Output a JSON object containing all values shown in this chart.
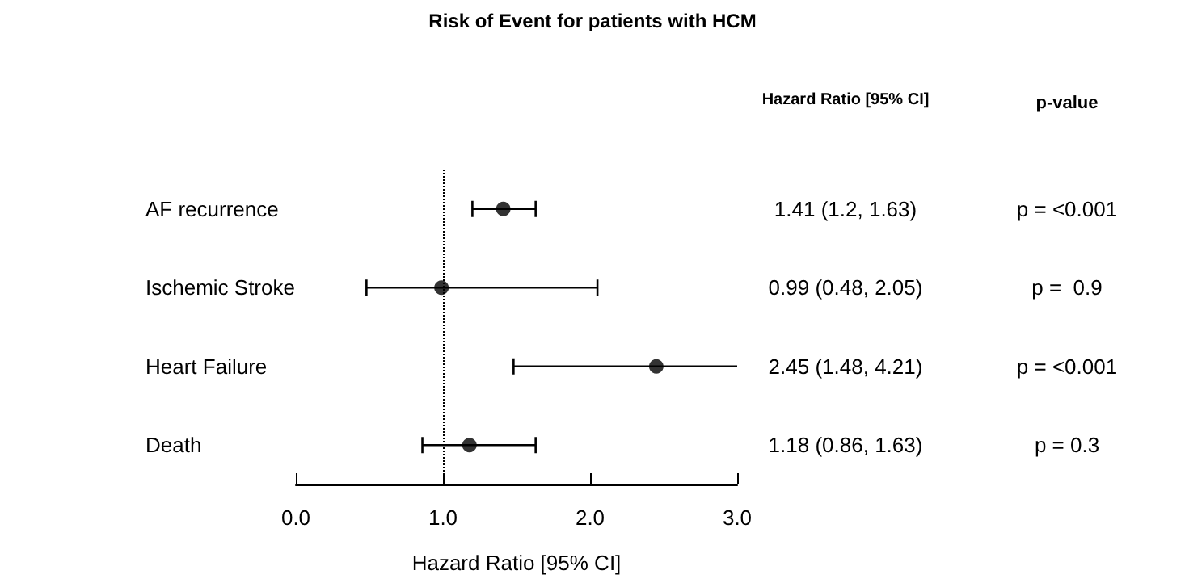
{
  "chart_data": {
    "type": "scatter",
    "title": "Risk of Event for patients with HCM",
    "xlabel": "Hazard Ratio [95% CI]",
    "orientation": "horizontal",
    "categories": [
      "AF recurrence",
      "Ischemic Stroke",
      "Heart Failure",
      "Death"
    ],
    "values": [
      1.41,
      0.99,
      2.45,
      1.18
    ],
    "errors": [
      [
        1.2,
        1.63
      ],
      [
        0.48,
        2.05
      ],
      [
        1.48,
        3.0
      ],
      [
        0.86,
        1.63
      ]
    ],
    "color": "#000000",
    "marker": "circle",
    "value_labels": [
      "1.41 (1.2, 1.63)",
      "0.99 (0.48, 2.05)",
      "2.45 (1.48, 4.21)",
      "1.18 (0.86, 1.63)"
    ],
    "annotations": [
      "Hazard Ratio [95% CI]",
      "p-value",
      "p = <0.001",
      "p =  0.9",
      "p = <0.001",
      "p = 0.3"
    ],
    "xlim": [
      0,
      3
    ],
    "xticks": [
      {
        "value": 0,
        "label": "0.0"
      },
      {
        "value": 1,
        "label": "1.0"
      },
      {
        "value": 2,
        "label": "2.0"
      },
      {
        "value": 3,
        "label": "3.0"
      }
    ],
    "ref_lines": [
      {
        "axis": "x",
        "value": 1,
        "line_style": "dotted",
        "color": "#000000"
      }
    ],
    "grid": false
  }
}
